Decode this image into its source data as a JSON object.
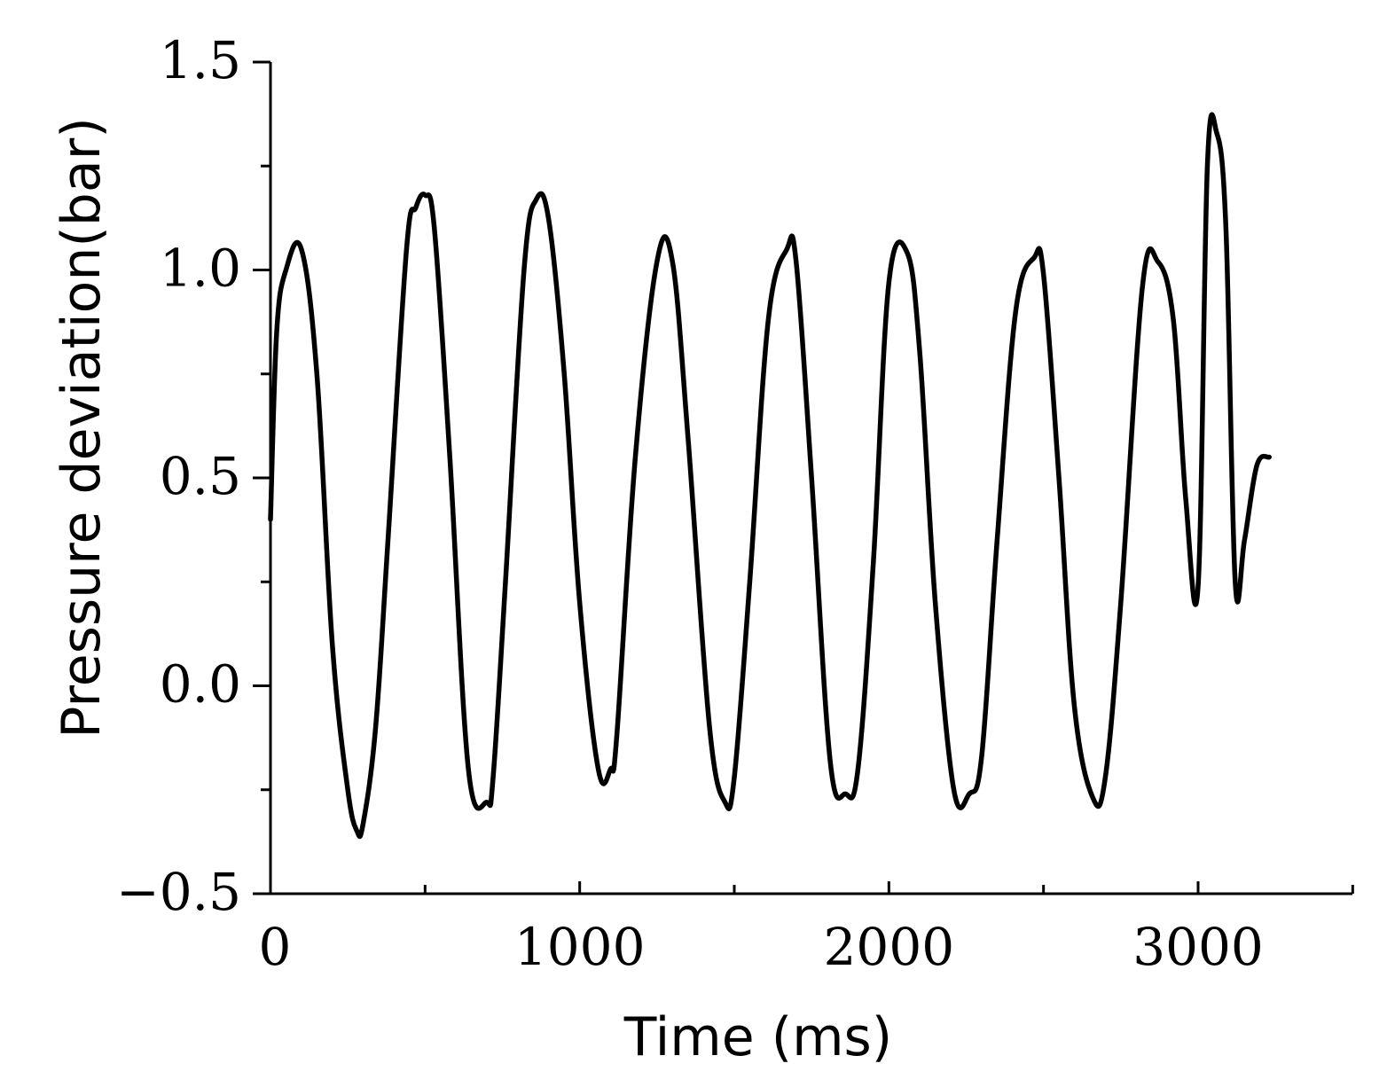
{
  "chart_data": {
    "type": "line",
    "title": "",
    "xlabel": "Time (ms)",
    "ylabel": "Pressure deviation(bar)",
    "xlim": [
      0,
      3500
    ],
    "ylim": [
      -0.5,
      1.5
    ],
    "xticks_major": [
      0,
      1000,
      2000,
      3000
    ],
    "xticks_minor": [
      500,
      1500,
      2500,
      3500
    ],
    "x_tick_labels": [
      "0",
      "1000",
      "2000",
      "3000"
    ],
    "yticks_major": [
      -0.5,
      0.0,
      0.5,
      1.0,
      1.5
    ],
    "yticks_minor": [
      -0.25,
      0.25,
      0.75,
      1.25
    ],
    "y_tick_labels": [
      "−0.5",
      "0.0",
      "0.5",
      "1.0",
      "1.5"
    ],
    "grid": false,
    "legend": "none",
    "line_color": "#000000",
    "series": [
      {
        "name": "",
        "x": [
          0,
          20,
          50,
          100,
          150,
          200,
          250,
          280,
          300,
          340,
          380,
          440,
          470,
          500,
          530,
          580,
          640,
          700,
          720,
          760,
          820,
          860,
          900,
          950,
          1000,
          1060,
          1100,
          1120,
          1180,
          1250,
          1300,
          1350,
          1420,
          1470,
          1500,
          1550,
          1610,
          1670,
          1700,
          1750,
          1810,
          1860,
          1900,
          1950,
          2000,
          2060,
          2100,
          2150,
          2210,
          2260,
          2300,
          2350,
          2410,
          2470,
          2500,
          2550,
          2600,
          2660,
          2700,
          2750,
          2820,
          2870,
          2920,
          2960,
          3000,
          3030,
          3060,
          3090,
          3120,
          3150,
          3190,
          3230
        ],
        "y": [
          0.4,
          0.85,
          1.0,
          1.05,
          0.75,
          0.1,
          -0.25,
          -0.35,
          -0.33,
          -0.1,
          0.35,
          1.05,
          1.15,
          1.18,
          1.1,
          0.55,
          -0.2,
          -0.28,
          -0.22,
          0.25,
          1.0,
          1.17,
          1.12,
          0.75,
          0.2,
          -0.2,
          -0.2,
          -0.12,
          0.55,
          1.02,
          1.02,
          0.6,
          -0.1,
          -0.28,
          -0.22,
          0.25,
          0.88,
          1.05,
          1.02,
          0.5,
          -0.18,
          -0.26,
          -0.2,
          0.3,
          0.97,
          1.04,
          0.8,
          0.2,
          -0.25,
          -0.26,
          -0.17,
          0.35,
          0.9,
          1.03,
          0.99,
          0.5,
          -0.05,
          -0.27,
          -0.22,
          0.2,
          0.96,
          1.02,
          0.88,
          0.45,
          0.24,
          1.25,
          1.33,
          1.1,
          0.25,
          0.35,
          0.53,
          0.55
        ]
      }
    ]
  }
}
